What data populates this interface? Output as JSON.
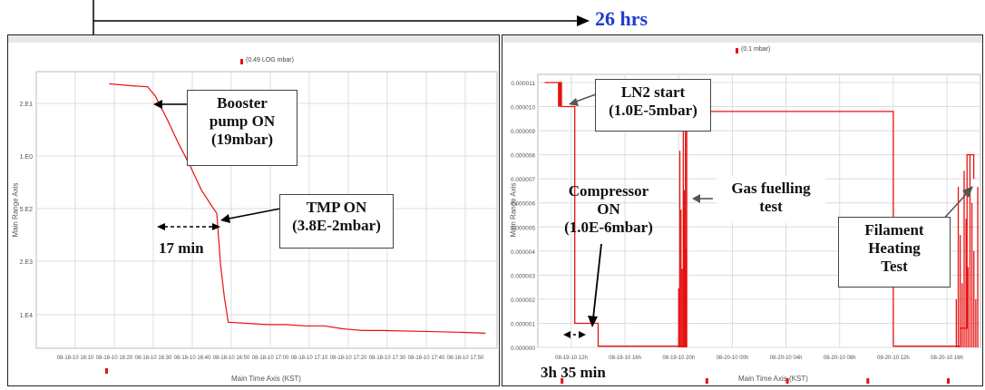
{
  "duration_label": "26 hrs",
  "charts": {
    "left": {
      "legend": "(0.49 LOG mbar)",
      "ylabel": "Main Range Axis",
      "xlabel": "Main Time Axis (KST)",
      "y_ticks": [
        "2.E1",
        "1.E0",
        "5.E2",
        "2.E3",
        "1.E4"
      ],
      "x_ticks": [
        "08-18-10 16:10",
        "08-18-10 16:20",
        "08-18-10 16:30",
        "08-18-10 16:40",
        "08-18-10 16:50",
        "08-18-10 17:00",
        "08-18-10 17:10",
        "08-18-10 17:20",
        "08-18-10 17:30",
        "08-18-10 17:40",
        "08-18-10 17:50"
      ]
    },
    "right": {
      "legend": "(0.1 mbar)",
      "ylabel": "Main Range Axis",
      "xlabel": "Main Time Axis (KST)",
      "y_ticks": [
        "0.000011",
        "0.000010",
        "0.000009",
        "0.000008",
        "0.000007",
        "0.000006",
        "0.000005",
        "0.000004",
        "0.000003",
        "0.000002",
        "0.000001",
        "0.000000"
      ],
      "x_ticks": [
        "08-19-10 12h",
        "08-19-10 16h",
        "08-19-10 20h",
        "08-20-10 00h",
        "08-20-10 04h",
        "08-20-10 08h",
        "08-20-10 12h",
        "08-20-10 16h"
      ]
    }
  },
  "annotations": {
    "booster": [
      "Booster",
      "pump ON",
      "(19mbar)"
    ],
    "tmp": [
      "TMP ON",
      "(3.8E-2mbar)"
    ],
    "seventeen": "17 min",
    "ln2": [
      "LN2 start",
      "(1.0E-5mbar)"
    ],
    "compressor": [
      "Compressor",
      "ON",
      "(1.0E-6mbar)"
    ],
    "gas": [
      "Gas fuelling",
      "test"
    ],
    "filament": [
      "Filament",
      "Heating",
      "Test"
    ],
    "three_h": "3h 35 min"
  },
  "colors": {
    "trace": "#e81010",
    "accent": "#1f3bd1",
    "grid": "#dcdcdc"
  },
  "chart_data": [
    {
      "type": "line",
      "title": "",
      "legend": "(0.49 LOG mbar)",
      "xlabel": "Main Time Axis (KST)",
      "ylabel": "Main Range Axis",
      "y_scale": "log",
      "x": [
        "16:19",
        "16:25",
        "16:29",
        "16:31",
        "16:34",
        "16:37",
        "16:40",
        "16:43",
        "16:46",
        "16:47",
        "16:48",
        "16:49",
        "16:50",
        "16:55",
        "17:00",
        "17:05",
        "17:10",
        "17:15",
        "17:20",
        "17:25",
        "17:30",
        "17:40",
        "17:50",
        "17:57"
      ],
      "series": [
        {
          "values": [
            22,
            20,
            19,
            12,
            4,
            1.2,
            0.4,
            0.12,
            0.05,
            0.038,
            0.003,
            0.0006,
            0.00018,
            0.00017,
            0.00016,
            0.00016,
            0.00015,
            0.00015,
            0.00013,
            0.00012,
            0.00012,
            0.000115,
            0.00011,
            0.000105
          ]
        }
      ]
    },
    {
      "type": "line",
      "title": "",
      "legend": "(0.1 mbar)",
      "xlabel": "Main Time Axis (KST)",
      "ylabel": "Main Range Axis",
      "ylim": [
        0,
        1.1e-05
      ],
      "x": [
        "08-19-10 10:00",
        "08-19-10 11:00",
        "08-19-10 11:15",
        "08-19-10 12:00",
        "08-19-10 12:15",
        "08-19-10 13:00",
        "08-19-10 14:00",
        "08-19-10 20:00",
        "08-19-10 20:30",
        "08-20-10 12:00",
        "08-20-10 15:00",
        "08-20-10 17:00",
        "08-20-10 17:30",
        "08-20-10 18:00"
      ],
      "series": [
        {
          "values": [
            1.1e-05,
            1.1e-05,
            1e-05,
            1e-05,
            1e-06,
            1e-06,
            5e-08,
            5e-08,
            9.8e-06,
            5e-08,
            5e-08,
            8e-07,
            8e-06,
            7e-06
          ]
        }
      ]
    }
  ]
}
